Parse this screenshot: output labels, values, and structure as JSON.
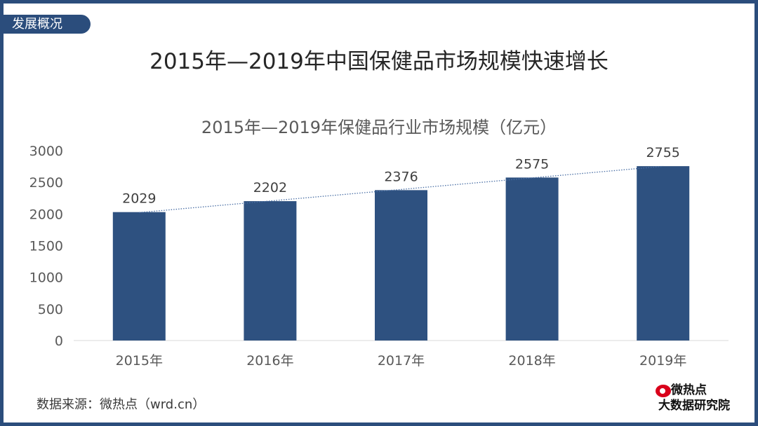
{
  "header": {
    "section_tag": "发展概况",
    "main_title": "2015年—2019年中国保健品市场规模快速增长"
  },
  "chart_data": {
    "type": "bar",
    "title": "2015年—2019年保健品行业市场规模（亿元）",
    "categories": [
      "2015年",
      "2016年",
      "2017年",
      "2018年",
      "2019年"
    ],
    "values": [
      2029,
      2202,
      2376,
      2575,
      2755
    ],
    "ylim": [
      0,
      3000
    ],
    "yticks": [
      0,
      500,
      1000,
      1500,
      2000,
      2500,
      3000
    ],
    "grid": false,
    "trendline": "linear-dotted",
    "bar_color": "#2e5180",
    "trend_color": "#4a6fa5"
  },
  "footer": {
    "source": "数据来源：微热点（wrd.cn）",
    "brand_line1": "微热点",
    "brand_line2": "大数据研究院",
    "brand_icon": "weibo-eye-icon"
  }
}
